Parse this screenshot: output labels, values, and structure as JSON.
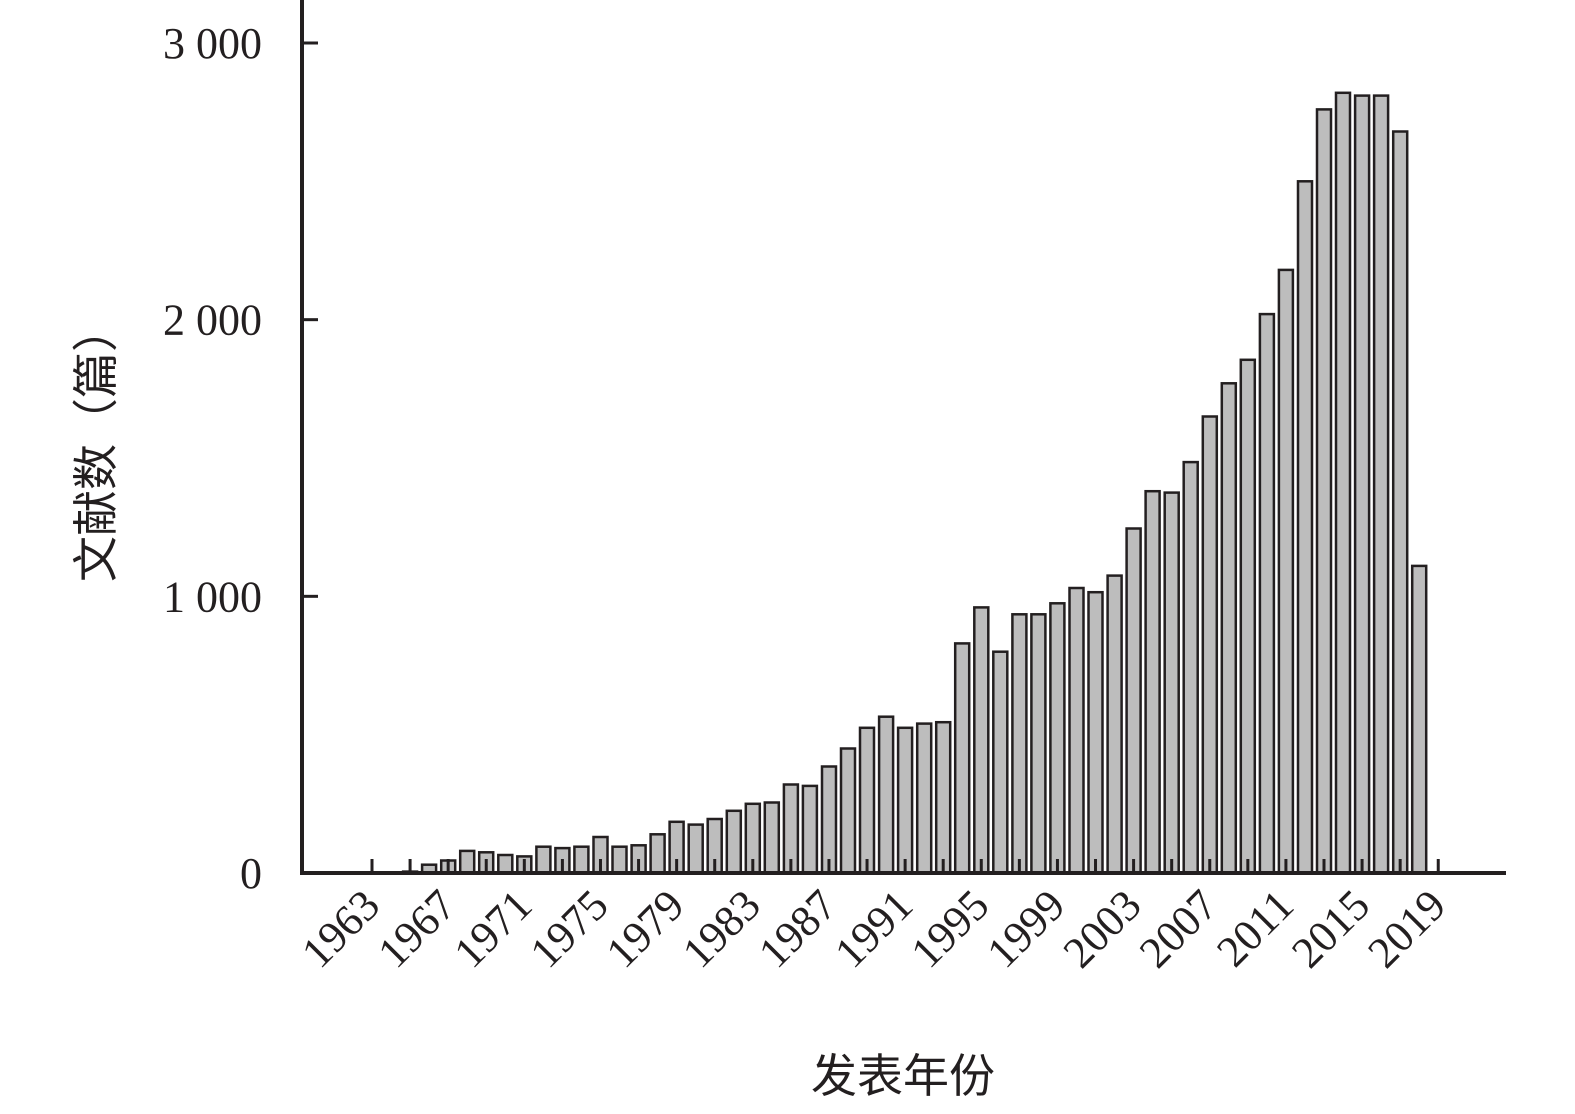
{
  "chart_data": {
    "type": "bar",
    "title": "",
    "xlabel": "发表年份",
    "ylabel": "文献数（篇）",
    "ylim": [
      0,
      3000
    ],
    "yticks": [
      0,
      1000,
      2000,
      3000
    ],
    "ytick_labels": [
      "0",
      "1 000",
      "2 000",
      "3 000"
    ],
    "x_tick_labels": [
      "1963",
      "1967",
      "1971",
      "1975",
      "1979",
      "1983",
      "1987",
      "1991",
      "1995",
      "1999",
      "2003",
      "2007",
      "2011",
      "2015",
      "2019"
    ],
    "grid": false,
    "legend": "none",
    "bar_color": "#bdbdbd",
    "edge_color": "#231f20",
    "categories": [
      1963,
      1964,
      1965,
      1966,
      1967,
      1968,
      1969,
      1970,
      1971,
      1972,
      1973,
      1974,
      1975,
      1976,
      1977,
      1978,
      1979,
      1980,
      1981,
      1982,
      1983,
      1984,
      1985,
      1986,
      1987,
      1988,
      1989,
      1990,
      1991,
      1992,
      1993,
      1994,
      1995,
      1996,
      1997,
      1998,
      1999,
      2000,
      2001,
      2002,
      2003,
      2004,
      2005,
      2006,
      2007,
      2008,
      2009,
      2010,
      2011,
      2012,
      2013,
      2014,
      2015,
      2016,
      2017,
      2018,
      2019
    ],
    "values": [
      0,
      0,
      5,
      30,
      45,
      80,
      75,
      65,
      60,
      95,
      90,
      95,
      130,
      95,
      100,
      140,
      185,
      175,
      195,
      225,
      250,
      255,
      320,
      315,
      385,
      450,
      525,
      565,
      525,
      540,
      545,
      830,
      960,
      800,
      935,
      935,
      975,
      1030,
      1015,
      1075,
      1245,
      1380,
      1375,
      1485,
      1650,
      1770,
      1855,
      2020,
      2180,
      2500,
      2760,
      2820,
      2810,
      2810,
      2680,
      1110,
      0
    ]
  }
}
